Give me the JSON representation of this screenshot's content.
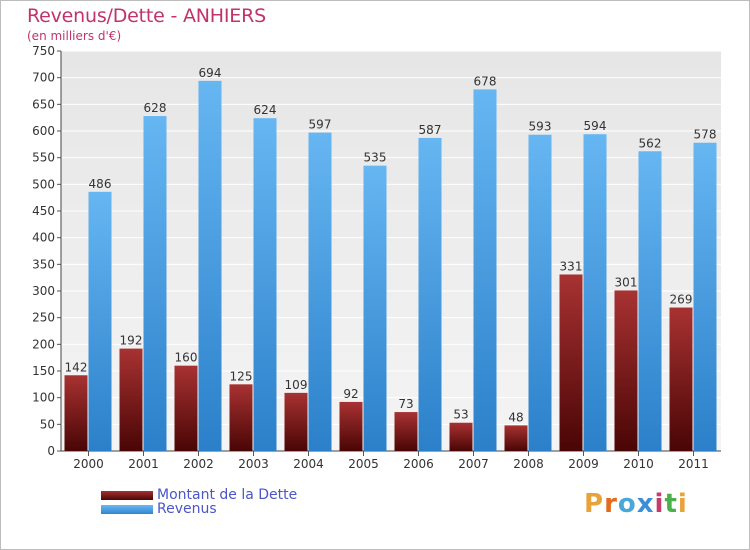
{
  "header": {
    "title": "Revenus/Dette - ANHIERS",
    "subtitle": "(en milliers d'€)"
  },
  "legend": {
    "items": [
      {
        "label": "Montant de la Dette",
        "color": "#7a1a1a"
      },
      {
        "label": "Revenus",
        "color": "#4da3e8"
      }
    ]
  },
  "logo": {
    "text": "Proxiti",
    "colors": [
      "#e8a23a",
      "#e46a1c",
      "#4aa8d8",
      "#3a8fd8",
      "#c43c6b",
      "#4bb04b",
      "#e8a23a"
    ]
  },
  "chart_data": {
    "type": "bar",
    "title": "Revenus/Dette - ANHIERS",
    "subtitle": "(en milliers d'€)",
    "categories": [
      "2000",
      "2001",
      "2002",
      "2003",
      "2004",
      "2005",
      "2006",
      "2007",
      "2008",
      "2009",
      "2010",
      "2011"
    ],
    "series": [
      {
        "name": "Montant de la Dette",
        "color": "#7a1a1a",
        "values": [
          142,
          192,
          160,
          125,
          109,
          92,
          73,
          53,
          48,
          331,
          301,
          269
        ]
      },
      {
        "name": "Revenus",
        "color": "#4da3e8",
        "values": [
          486,
          628,
          694,
          624,
          597,
          535,
          587,
          678,
          593,
          594,
          562,
          578
        ]
      }
    ],
    "ylim": [
      0,
      750
    ],
    "yticks": [
      0,
      50,
      100,
      150,
      200,
      250,
      300,
      350,
      400,
      450,
      500,
      550,
      600,
      650,
      700,
      750
    ],
    "grid": true,
    "legend_position": "bottom-left"
  }
}
